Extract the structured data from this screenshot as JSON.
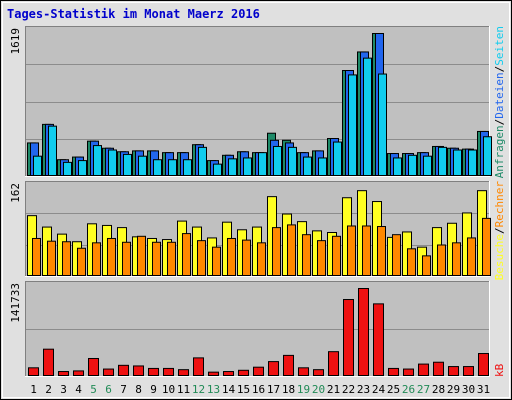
{
  "title": "Tages-Statistik im Monat Maerz 2016",
  "colors": {
    "background": "#e0e0e0",
    "panel": "#c0c0c0",
    "grid": "#8c8c8c",
    "weekday": "#000000",
    "weekend": "#228b57",
    "anfragen": "#1e8a68",
    "dateien": "#2266ee",
    "seiten": "#11ccee",
    "besuche": "#ffff22",
    "rechner": "#ff8800",
    "kb": "#ee1111"
  },
  "legend": {
    "top": [
      {
        "key": "anfragen",
        "label": "Anfragen"
      },
      {
        "key": "dateien",
        "label": "Dateien"
      },
      {
        "key": "seiten",
        "label": "Seiten"
      }
    ],
    "mid": [
      {
        "key": "besuche",
        "label": "Besuche"
      },
      {
        "key": "rechner",
        "label": "Rechner"
      }
    ],
    "bottom": [
      {
        "key": "kb",
        "label": "kB"
      }
    ],
    "separator": "/"
  },
  "chart_data": {
    "type": "bar",
    "categories": [
      "1",
      "2",
      "3",
      "4",
      "5",
      "6",
      "7",
      "8",
      "9",
      "10",
      "11",
      "12",
      "13",
      "14",
      "15",
      "16",
      "17",
      "18",
      "19",
      "20",
      "21",
      "22",
      "23",
      "24",
      "25",
      "26",
      "27",
      "28",
      "29",
      "30",
      "31"
    ],
    "weekend_days": [
      "5",
      "6",
      "12",
      "13",
      "19",
      "20",
      "26",
      "27"
    ],
    "panels": [
      {
        "id": "top",
        "ymax_label": "1619",
        "ylim": [
          0,
          1619
        ],
        "series": [
          {
            "name": "Anfragen",
            "values": [
              380,
              590,
              190,
              220,
              400,
              320,
              280,
              290,
              290,
              270,
              270,
              360,
              180,
              240,
              280,
              270,
              490,
              410,
              270,
              290,
              430,
              1200,
              1410,
              1619,
              260,
              260,
              270,
              340,
              320,
              310,
              510
            ]
          },
          {
            "name": "Dateien",
            "values": [
              380,
              590,
              190,
              220,
              400,
              320,
              280,
              290,
              290,
              270,
              270,
              360,
              180,
              240,
              280,
              270,
              410,
              380,
              270,
              290,
              430,
              1200,
              1410,
              1619,
              260,
              260,
              270,
              340,
              320,
              310,
              510
            ]
          },
          {
            "name": "Seiten",
            "values": [
              230,
              570,
              160,
              180,
              350,
              300,
              250,
              230,
              190,
              190,
              190,
              330,
              140,
              200,
              210,
              270,
              340,
              330,
              220,
              210,
              390,
              1150,
              1340,
              1160,
              210,
              240,
              230,
              330,
              300,
              300,
              450
            ]
          }
        ]
      },
      {
        "id": "mid",
        "ymax_label": "162",
        "ylim": [
          0,
          162
        ],
        "series": [
          {
            "name": "Besuche",
            "values": [
              112,
              91,
              78,
              64,
              97,
              94,
              90,
              73,
              70,
              68,
              102,
              91,
              71,
              100,
              86,
              91,
              147,
              115,
              101,
              84,
              81,
              145,
              158,
              138,
              72,
              82,
              54,
              90,
              98,
              117,
              158
            ]
          },
          {
            "name": "Rechner",
            "values": [
              70,
              65,
              64,
              52,
              62,
              70,
              63,
              74,
              63,
              63,
              79,
              66,
              54,
              70,
              67,
              62,
              90,
              95,
              77,
              66,
              74,
              93,
              93,
              92,
              77,
              51,
              38,
              58,
              62,
              71,
              107
            ]
          }
        ]
      },
      {
        "id": "bottom",
        "ymax_label": "141733",
        "ylim": [
          0,
          141733
        ],
        "series": [
          {
            "name": "kB",
            "values": [
              14000,
              44000,
              8000,
              9000,
              29000,
              12000,
              18000,
              17000,
              13000,
              13000,
              11000,
              30000,
              7000,
              8000,
              10000,
              15000,
              24000,
              34000,
              14000,
              11000,
              40000,
              124000,
              141733,
              117000,
              13000,
              12000,
              20000,
              23000,
              16000,
              16000,
              37000
            ]
          }
        ]
      }
    ]
  }
}
